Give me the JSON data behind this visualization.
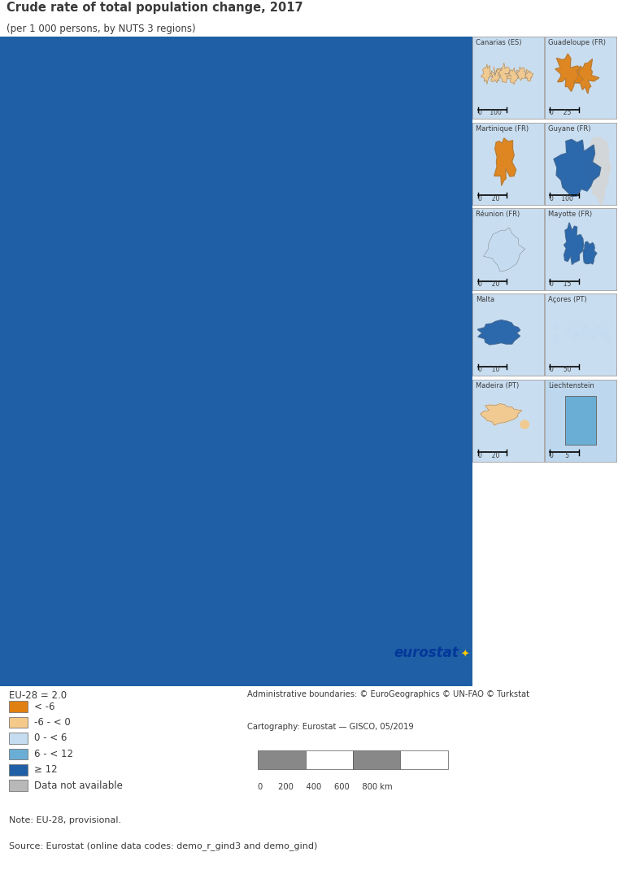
{
  "title": "Crude rate of total population change, 2017",
  "subtitle": "(per 1 000 persons, by NUTS 3 regions)",
  "legend_title": "EU-28 = 2.0",
  "legend_items": [
    {
      "label": "< -6",
      "color": "#E08010"
    },
    {
      "label": "-6 - < 0",
      "color": "#F5C98A"
    },
    {
      "label": "0 - < 6",
      "color": "#C5DCF0"
    },
    {
      "label": "6 - < 12",
      "color": "#6AAED6"
    },
    {
      "label": "≥ 12",
      "color": "#1F5FA6"
    },
    {
      "label": "Data not available",
      "color": "#B8B8B8"
    }
  ],
  "inset_panels": [
    {
      "label": "Canarias (ES)",
      "scale": "0    100",
      "land_color": "#F5C98A",
      "bg": "#D0E8F8"
    },
    {
      "label": "Guadeloupe (FR)",
      "scale": "0     25",
      "land_color": "#E08010",
      "bg": "#D0E8F8"
    },
    {
      "label": "Martinique (FR)",
      "scale": "0     20",
      "land_color": "#E08010",
      "bg": "#D0E8F8"
    },
    {
      "label": "Guyane (FR)",
      "scale": "0    100",
      "land_color": "#1F5FA6",
      "bg": "#D0E8F8"
    },
    {
      "label": "Réunion (FR)",
      "scale": "0     20",
      "land_color": "#C5DCF0",
      "bg": "#D0E8F8"
    },
    {
      "label": "Mayotte (FR)",
      "scale": "0     15",
      "land_color": "#1F5FA6",
      "bg": "#D0E8F8"
    },
    {
      "label": "Malta",
      "scale": "0     10",
      "land_color": "#1F5FA6",
      "bg": "#D0E8F8"
    },
    {
      "label": "Açores (PT)",
      "scale": "0     50",
      "land_color": "#C5DCF0",
      "bg": "#D0E8F8"
    },
    {
      "label": "Madeira (PT)",
      "scale": "0     20",
      "land_color": "#F5C98A",
      "bg": "#D0E8F8"
    },
    {
      "label": "Liechtenstein",
      "scale": "0      5",
      "land_color": "#6AAED6",
      "bg": "#D0E8F8"
    }
  ],
  "note": "Note: EU-28, provisional.",
  "source": "Source: Eurostat (online data codes: demo_r_gind3 and demo_gind)",
  "admin_note": "Administrative boundaries: © EuroGeographics © UN-FAO © Turkstat",
  "carto_note": "Cartography: Eurostat — GISCO, 05/2019",
  "bg_color": "#FFFFFF",
  "map_sea_color": "#C8DDF0",
  "map_land_color": "#E8E4E0",
  "inset_sea_color": "#C8DDF0",
  "box_border": "#AAAAAA",
  "title_color": "#3A3A3A",
  "text_color": "#3A3A3A",
  "eurostat_color": "#003399",
  "eurostat_star_color": "#FFCC00"
}
